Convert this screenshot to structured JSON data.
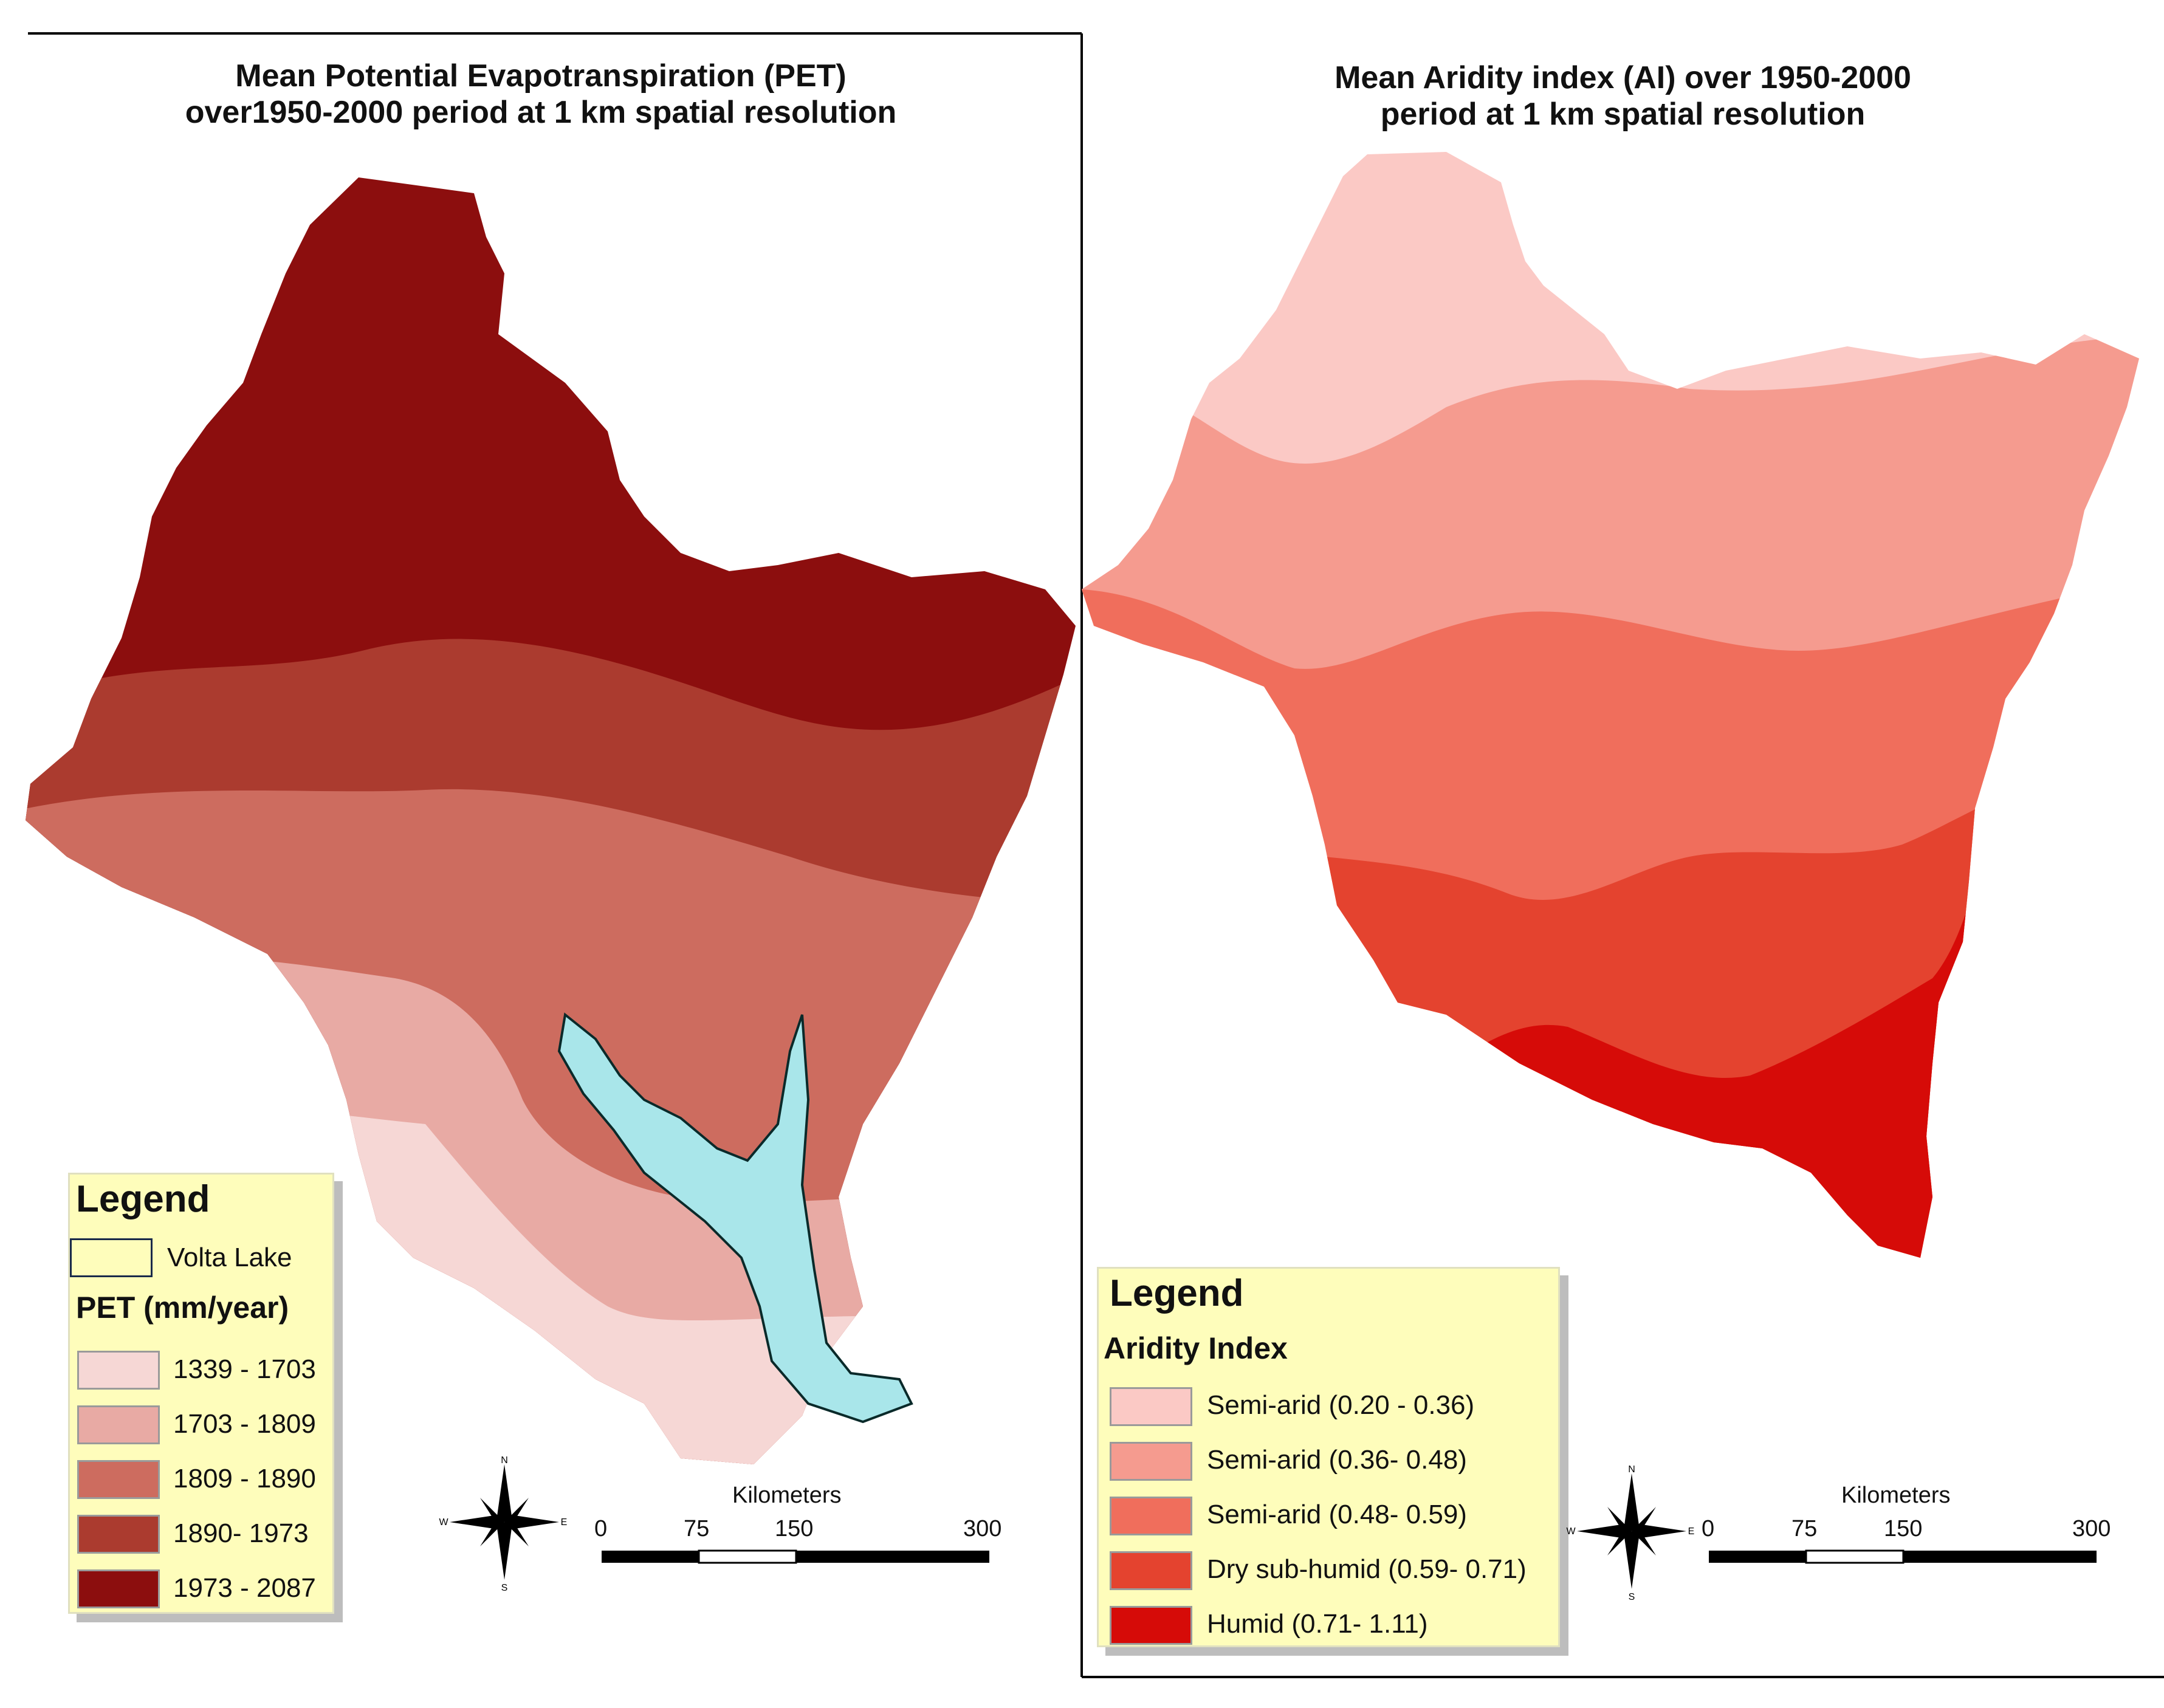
{
  "left_map": {
    "title_line1": "Mean Potential Evapotranspiration (PET)",
    "title_line2": "over1950-2000 period at 1 km spatial resolution",
    "legend": {
      "title": "Legend",
      "lake_label": "Volta Lake",
      "subtitle": "PET (mm/year)",
      "classes": [
        {
          "label": "1339 - 1703",
          "color": "#f6d7d5"
        },
        {
          "label": "1703 - 1809",
          "color": "#e8aaa4"
        },
        {
          "label": "1809 - 1890",
          "color": "#cd6c5f"
        },
        {
          "label": "1890- 1973",
          "color": "#ab3b2f"
        },
        {
          "label": "1973 - 2087",
          "color": "#8c0e0e"
        }
      ]
    },
    "scale": {
      "unit": "Kilometers",
      "ticks": [
        "0",
        "75",
        "150",
        "300"
      ]
    },
    "north_arrow": {
      "n": "N",
      "e": "E",
      "s": "S",
      "w": "W"
    }
  },
  "right_map": {
    "title_line1": "Mean Aridity index (AI) over 1950-2000",
    "title_line2": "period at 1 km spatial resolution",
    "legend": {
      "title": "Legend",
      "subtitle": "Aridity Index",
      "classes": [
        {
          "label": "Semi-arid (0.20 - 0.36)",
          "color": "#fbc9c5"
        },
        {
          "label": "Semi-arid (0.36- 0.48)",
          "color": "#f59b8f"
        },
        {
          "label": "Semi-arid (0.48- 0.59)",
          "color": "#f06e5c"
        },
        {
          "label": "Dry sub-humid (0.59- 0.71)",
          "color": "#e4432f"
        },
        {
          "label": "Humid (0.71- 1.11)",
          "color": "#d60b08"
        }
      ]
    },
    "scale": {
      "unit": "Kilometers",
      "ticks": [
        "0",
        "75",
        "150",
        "300"
      ]
    },
    "north_arrow": {
      "n": "N",
      "e": "E",
      "s": "S",
      "w": "W"
    }
  },
  "colors": {
    "lake": "#a9e6ea",
    "frame": "#000000",
    "legend_bg": "#fefdbb"
  }
}
